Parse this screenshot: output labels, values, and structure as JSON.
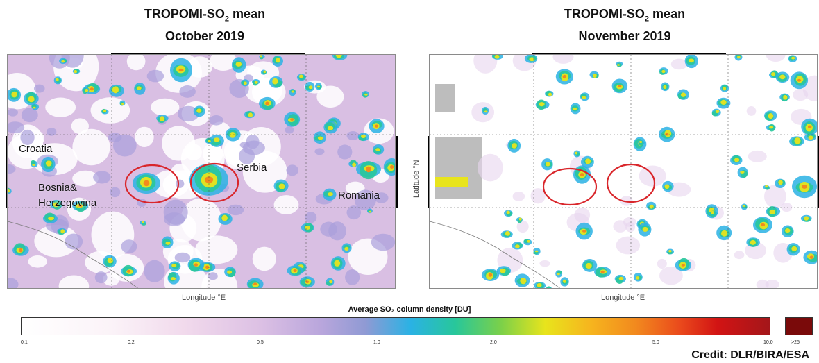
{
  "left_panel": {
    "title_prefix": "TROPOMI-SO",
    "title_subscript": "2",
    "title_suffix": " mean",
    "subtitle": "October 2019",
    "xlabel": "Longitude °E",
    "labels": {
      "croatia": "Croatia",
      "bosnia_line1": "Bosnia&",
      "bosnia_line2": "Herzegovina",
      "serbia": "Serbia",
      "romania": "Romania"
    }
  },
  "right_panel": {
    "title_prefix": "TROPOMI-SO",
    "title_subscript": "2",
    "title_suffix": " mean",
    "subtitle": "November 2019",
    "xlabel": "Longitude °E",
    "ylabel": "Latitude °N"
  },
  "colorbar": {
    "title": "Average SO₂ column density [DU]",
    "ticks": [
      "0.1",
      "0.2",
      "0.5",
      "1.0",
      "2.0",
      "5.0",
      "10.0"
    ],
    "extra_label": ">25",
    "colors": {
      "low": "#ffffff",
      "lilac": "#d9bfe3",
      "blue": "#2ab2e4",
      "green": "#28c79a",
      "yellow": "#e8e41c",
      "orange": "#f28a1e",
      "red": "#d21414",
      "dark_red": "#7a0a0a"
    }
  },
  "highlight_ellipse_color": "#d9262b",
  "credit": "Credit: DLR/BIRA/ESA"
}
